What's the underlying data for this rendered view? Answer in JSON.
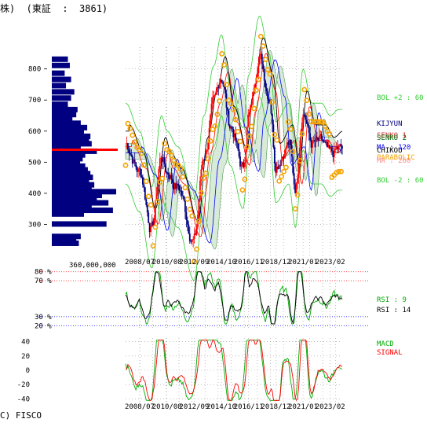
{
  "header": {
    "text": "株)  (東証  :  3861)"
  },
  "footer": {
    "copyright": "C) FISCO"
  },
  "colors": {
    "candle_up": "#ff0000",
    "candle_down": "#000080",
    "close_line": "#000000",
    "bol": "#33cc33",
    "sma_short": "#ff0000",
    "sma_long": "#0000ff",
    "parabolic": "#f5a300",
    "kijyun": "#000080",
    "cloud": "#006600",
    "volume_bar": "#000080",
    "rsi9": "#00aa00",
    "rsi14": "#000000",
    "macd": "#00aa00",
    "signal": "#ff0000",
    "grid": "#999999"
  },
  "chart_data": [
    {
      "type": "candlestick",
      "name": "price",
      "ylim": [
        200,
        870
      ],
      "yticks": [
        400,
        500,
        600,
        700,
        800,
        300
      ],
      "xtick_labels": [
        "2008/07",
        "2010/08",
        "2012/09",
        "2014/10",
        "2016/11",
        "2018/12",
        "2021/01",
        "2023/02"
      ],
      "x_range": [
        "2007/06",
        "2024/01"
      ],
      "close_approx": [
        {
          "t": "2007/06",
          "v": 560
        },
        {
          "t": "2008/07",
          "v": 470
        },
        {
          "t": "2009/06",
          "v": 290
        },
        {
          "t": "2010/03",
          "v": 520
        },
        {
          "t": "2010/08",
          "v": 470
        },
        {
          "t": "2011/06",
          "v": 420
        },
        {
          "t": "2012/09",
          "v": 250
        },
        {
          "t": "2013/06",
          "v": 520
        },
        {
          "t": "2014/03",
          "v": 680
        },
        {
          "t": "2014/10",
          "v": 780
        },
        {
          "t": "2015/06",
          "v": 620
        },
        {
          "t": "2016/06",
          "v": 480
        },
        {
          "t": "2016/11",
          "v": 650
        },
        {
          "t": "2017/09",
          "v": 840
        },
        {
          "t": "2018/06",
          "v": 720
        },
        {
          "t": "2018/12",
          "v": 500
        },
        {
          "t": "2019/12",
          "v": 560
        },
        {
          "t": "2020/06",
          "v": 420
        },
        {
          "t": "2021/01",
          "v": 670
        },
        {
          "t": "2021/09",
          "v": 560
        },
        {
          "t": "2022/06",
          "v": 560
        },
        {
          "t": "2023/02",
          "v": 520
        },
        {
          "t": "2023/10",
          "v": 540
        }
      ],
      "indicators": [
        {
          "name": "BOL +2 : 60",
          "value": null
        },
        {
          "name": "KIJYUN",
          "value": null
        },
        {
          "name": "SENKO 1",
          "value": null
        },
        {
          "name": "SENKO 2",
          "value": null
        },
        {
          "name": "MA : 120",
          "value": null
        },
        {
          "name": "CHIKOU",
          "value": null
        },
        {
          "name": "PARABOLIC",
          "value": null
        },
        {
          "name": "MA : 260",
          "value": null
        },
        {
          "name": "BOL -2 : 60",
          "value": null
        }
      ],
      "right_labels": [
        {
          "text": "BOL +2 : 60",
          "color": "#33cc33"
        },
        {
          "text": "KIJYUN",
          "color": "#000080"
        },
        {
          "text": "SENKO 1",
          "color": "#cc3333"
        },
        {
          "text": "SENKO 2",
          "color": "#006600"
        },
        {
          "text": "MA : 120",
          "color": "#0000ff"
        },
        {
          "text": "CHIKOU",
          "color": "#000000"
        },
        {
          "text": "PARABOLIC",
          "color": "#f5a300"
        },
        {
          "text": "MA : 260",
          "color": "#ff8a8a"
        },
        {
          "text": "BOL -2 : 60",
          "color": "#33cc33"
        }
      ],
      "volume_profile": {
        "label": "360,000,000",
        "bins": [
          {
            "price": 830,
            "len": 0.25
          },
          {
            "price": 810,
            "len": 0.28
          },
          {
            "price": 785,
            "len": 0.2
          },
          {
            "price": 765,
            "len": 0.3
          },
          {
            "price": 745,
            "len": 0.22
          },
          {
            "price": 725,
            "len": 0.35
          },
          {
            "price": 705,
            "len": 0.3
          },
          {
            "price": 685,
            "len": 0.25
          },
          {
            "price": 668,
            "len": 0.4
          },
          {
            "price": 652,
            "len": 0.38
          },
          {
            "price": 638,
            "len": 0.32
          },
          {
            "price": 624,
            "len": 0.45
          },
          {
            "price": 610,
            "len": 0.55
          },
          {
            "price": 596,
            "len": 0.5
          },
          {
            "price": 582,
            "len": 0.6
          },
          {
            "price": 570,
            "len": 0.58
          },
          {
            "price": 558,
            "len": 0.62
          },
          {
            "price": 546,
            "len": 0.45
          },
          {
            "price": 534,
            "len": 0.7
          },
          {
            "price": 522,
            "len": 0.52
          },
          {
            "price": 510,
            "len": 0.48
          },
          {
            "price": 498,
            "len": 0.44
          },
          {
            "price": 486,
            "len": 0.52
          },
          {
            "price": 474,
            "len": 0.56
          },
          {
            "price": 462,
            "len": 0.6
          },
          {
            "price": 450,
            "len": 0.64
          },
          {
            "price": 438,
            "len": 0.58
          },
          {
            "price": 426,
            "len": 0.66
          },
          {
            "price": 414,
            "len": 0.62
          },
          {
            "price": 404,
            "len": 1.0
          },
          {
            "price": 392,
            "len": 0.78
          },
          {
            "price": 380,
            "len": 0.7
          },
          {
            "price": 368,
            "len": 0.88
          },
          {
            "price": 356,
            "len": 0.62
          },
          {
            "price": 344,
            "len": 0.95
          },
          {
            "price": 332,
            "len": 0.5
          },
          {
            "price": 300,
            "len": 0.85
          },
          {
            "price": 260,
            "len": 0.45
          },
          {
            "price": 248,
            "len": 0.38
          },
          {
            "price": 238,
            "len": 0.42
          }
        ],
        "highlight_price": 540
      }
    },
    {
      "type": "line",
      "name": "rsi",
      "ylim": [
        15,
        85
      ],
      "levels": [
        {
          "value": 80,
          "label": "80 %",
          "color": "#ff0000"
        },
        {
          "value": 70,
          "label": "70 %",
          "color": "#ff0000"
        },
        {
          "value": 30,
          "label": "30 %",
          "color": "#0000ff"
        },
        {
          "value": 20,
          "label": "20 %",
          "color": "#0000ff"
        }
      ],
      "series": [
        {
          "name": "RSI : 9",
          "color": "#00aa00"
        },
        {
          "name": "RSI : 14",
          "color": "#000000"
        }
      ]
    },
    {
      "type": "line",
      "name": "macd",
      "ylim": [
        -45,
        45
      ],
      "yticks": [
        40,
        20,
        0,
        -20,
        -40
      ],
      "series": [
        {
          "name": "MACD",
          "color": "#00aa00"
        },
        {
          "name": "SIGNAL",
          "color": "#ff0000"
        }
      ],
      "xtick_labels": [
        "2008/07",
        "2010/08",
        "2012/09",
        "2014/10",
        "2016/11",
        "2018/12",
        "2021/01",
        "2023/02"
      ]
    }
  ]
}
